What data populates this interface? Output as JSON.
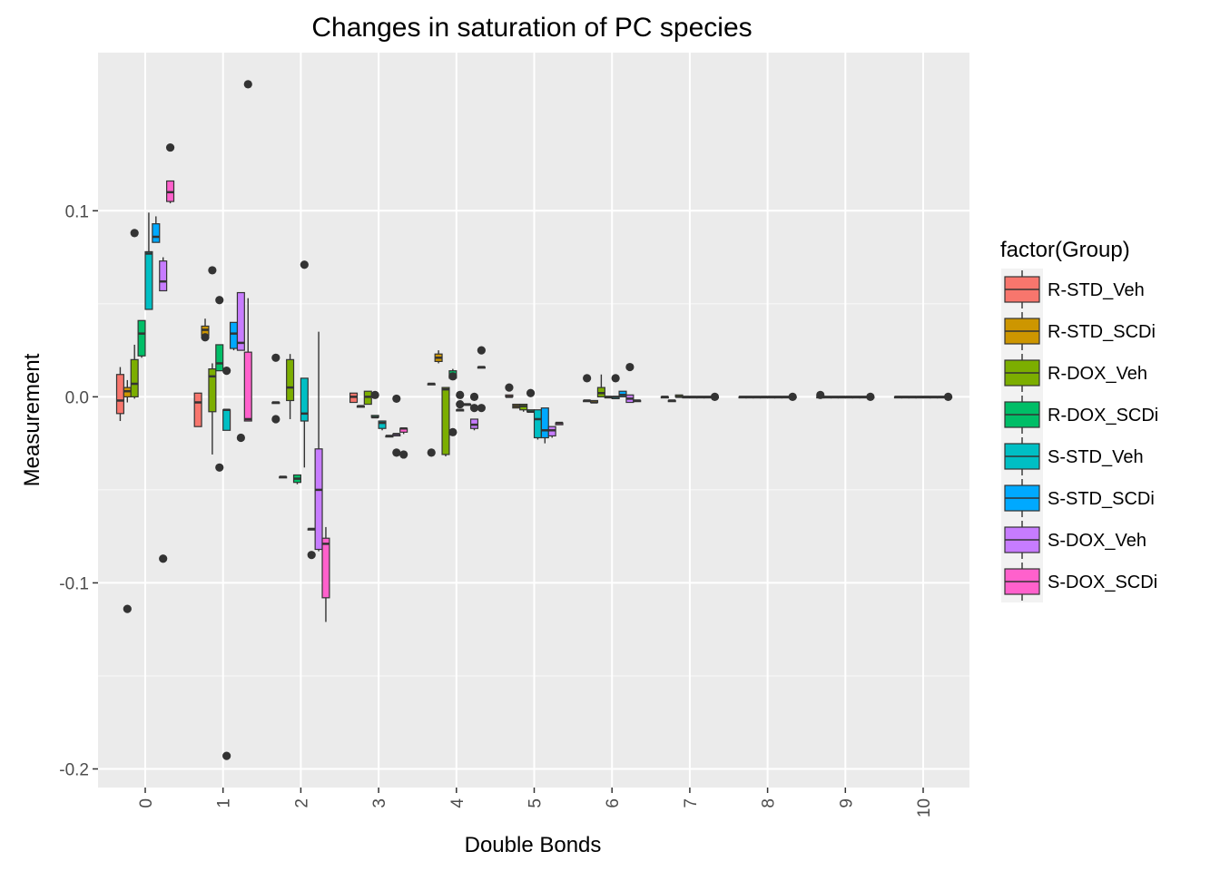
{
  "chart_data": {
    "type": "boxplot",
    "title": "Changes in saturation of PC species",
    "xlabel": "Double Bonds",
    "ylabel": "Measurement",
    "categories": [
      "0",
      "1",
      "2",
      "3",
      "4",
      "5",
      "6",
      "7",
      "8",
      "9",
      "10"
    ],
    "ylim": [
      -0.21,
      0.185
    ],
    "yticks": [
      -0.2,
      -0.1,
      0.0,
      0.1
    ],
    "ytick_labels": [
      "-0.2",
      "-0.1",
      "0.0",
      "0.1"
    ],
    "grid": true,
    "background": "#ebebeb",
    "gridline_color": "#ffffff",
    "legend": {
      "title": "factor(Group)",
      "position": "right"
    },
    "series": [
      {
        "name": "R-STD_Veh",
        "color": "#F8766D",
        "boxes": [
          [
            -0.013,
            -0.009,
            -0.002,
            0.012,
            0.016
          ],
          [
            -0.016,
            -0.016,
            -0.003,
            0.002,
            0.002
          ],
          [
            -0.003,
            -0.003,
            -0.003,
            -0.003,
            -0.003
          ],
          [
            -0.003,
            -0.003,
            0.0,
            0.002,
            0.002
          ],
          [
            0.007,
            0.007,
            0.007,
            0.007,
            0.007
          ],
          [
            0.0,
            0.0,
            0.0,
            0.001,
            0.001
          ],
          [
            -0.002,
            -0.002,
            -0.002,
            -0.002,
            -0.002
          ],
          [
            0.0,
            0.0,
            0.0,
            0.0,
            0.0
          ],
          [
            0.0,
            0.0,
            0.0,
            0.0,
            0.0
          ],
          [
            0.0,
            0.0,
            0.0,
            0.0,
            0.0
          ],
          [
            0.0,
            0.0,
            0.0,
            0.0,
            0.0
          ]
        ],
        "outliers": [
          [],
          [],
          [
            -0.012,
            0.021
          ],
          [],
          [
            -0.03
          ],
          [
            0.005
          ],
          [
            0.01
          ],
          [],
          [],
          [
            0.001
          ],
          []
        ]
      },
      {
        "name": "R-STD_SCDi",
        "color": "#CD9600",
        "boxes": [
          [
            -0.003,
            0.0,
            0.003,
            0.005,
            0.009
          ],
          [
            0.032,
            0.033,
            0.036,
            0.038,
            0.042
          ],
          [
            -0.043,
            -0.043,
            -0.043,
            -0.043,
            -0.043
          ],
          [
            -0.005,
            -0.005,
            -0.005,
            -0.005,
            -0.005
          ],
          [
            0.018,
            0.019,
            0.021,
            0.023,
            0.025
          ],
          [
            -0.006,
            -0.006,
            -0.005,
            -0.004,
            -0.004
          ],
          [
            -0.003,
            -0.003,
            -0.003,
            -0.002,
            -0.002
          ],
          [
            -0.002,
            -0.002,
            -0.002,
            -0.002,
            -0.002
          ],
          [
            0.0,
            0.0,
            0.0,
            0.0,
            0.0
          ],
          [
            0.0,
            0.0,
            0.0,
            0.0,
            0.0
          ],
          [
            0.0,
            0.0,
            0.0,
            0.0,
            0.0
          ]
        ],
        "outliers": [
          [
            -0.114
          ],
          [
            0.032
          ],
          [],
          [],
          [],
          [],
          [],
          [],
          [],
          [],
          []
        ]
      },
      {
        "name": "R-DOX_Veh",
        "color": "#7CAE00",
        "boxes": [
          [
            -0.001,
            0.0,
            0.007,
            0.02,
            0.028
          ],
          [
            -0.031,
            -0.008,
            0.011,
            0.015,
            0.018
          ],
          [
            -0.012,
            -0.002,
            0.005,
            0.02,
            0.023
          ],
          [
            -0.004,
            -0.004,
            0.0,
            0.003,
            0.003
          ],
          [
            -0.032,
            -0.031,
            0.004,
            0.005,
            0.005
          ],
          [
            -0.008,
            -0.007,
            -0.005,
            -0.004,
            -0.004
          ],
          [
            0.0,
            0.0,
            0.002,
            0.005,
            0.012
          ],
          [
            0.0,
            0.0,
            0.0,
            0.001,
            0.001
          ],
          [
            0.0,
            0.0,
            0.0,
            0.0,
            0.0
          ],
          [
            0.0,
            0.0,
            0.0,
            0.0,
            0.0
          ],
          [
            0.0,
            0.0,
            0.0,
            0.0,
            0.0
          ]
        ],
        "outliers": [
          [
            0.088
          ],
          [
            0.068
          ],
          [],
          [],
          [],
          [],
          [],
          [],
          [],
          [],
          []
        ]
      },
      {
        "name": "R-DOX_SCDi",
        "color": "#00BE67",
        "boxes": [
          [
            0.021,
            0.022,
            0.034,
            0.041,
            0.041
          ],
          [
            0.014,
            0.014,
            0.018,
            0.028,
            0.028
          ],
          [
            -0.047,
            -0.046,
            -0.044,
            -0.042,
            -0.042
          ],
          [
            -0.011,
            -0.011,
            -0.011,
            -0.01,
            -0.01
          ],
          [
            0.01,
            0.01,
            0.012,
            0.014,
            0.015
          ],
          [
            -0.008,
            -0.008,
            -0.008,
            -0.007,
            -0.007
          ],
          [
            0.0,
            0.0,
            0.0,
            0.0,
            0.0
          ],
          [
            0.0,
            0.0,
            0.0,
            0.0,
            0.0
          ],
          [
            0.0,
            0.0,
            0.0,
            0.0,
            0.0
          ],
          [
            0.0,
            0.0,
            0.0,
            0.0,
            0.0
          ],
          [
            0.0,
            0.0,
            0.0,
            0.0,
            0.0
          ]
        ],
        "outliers": [
          [],
          [
            -0.038,
            0.052
          ],
          [],
          [
            0.001
          ],
          [
            -0.019,
            0.011
          ],
          [
            0.002
          ],
          [],
          [],
          [],
          [],
          []
        ]
      },
      {
        "name": "S-STD_Veh",
        "color": "#00BFC4",
        "boxes": [
          [
            0.047,
            0.047,
            0.077,
            0.078,
            0.099
          ],
          [
            -0.018,
            -0.018,
            -0.007,
            -0.007,
            -0.007
          ],
          [
            -0.038,
            -0.013,
            -0.009,
            0.01,
            0.01
          ],
          [
            -0.018,
            -0.017,
            -0.014,
            -0.013,
            -0.013
          ],
          [
            -0.007,
            -0.007,
            -0.007,
            -0.007,
            -0.007
          ],
          [
            -0.023,
            -0.022,
            -0.012,
            -0.007,
            -0.007
          ],
          [
            -0.001,
            -0.001,
            0.0,
            0.0,
            0.0
          ],
          [
            0.0,
            0.0,
            0.0,
            0.0,
            0.0
          ],
          [
            0.0,
            0.0,
            0.0,
            0.0,
            0.0
          ],
          [
            0.0,
            0.0,
            0.0,
            0.0,
            0.0
          ],
          [
            0.0,
            0.0,
            0.0,
            0.0,
            0.0
          ]
        ],
        "outliers": [
          [],
          [
            -0.193,
            0.014
          ],
          [
            0.071
          ],
          [],
          [
            -0.004,
            0.001
          ],
          [],
          [
            0.01
          ],
          [],
          [],
          [],
          []
        ]
      },
      {
        "name": "S-STD_SCDi",
        "color": "#00A9FF",
        "boxes": [
          [
            0.083,
            0.083,
            0.086,
            0.093,
            0.097
          ],
          [
            0.025,
            0.026,
            0.034,
            0.04,
            0.04
          ],
          [
            -0.071,
            -0.071,
            -0.071,
            -0.071,
            -0.071
          ],
          [
            -0.021,
            -0.021,
            -0.021,
            -0.021,
            -0.021
          ],
          [
            -0.004,
            -0.004,
            -0.004,
            -0.004,
            -0.004
          ],
          [
            -0.025,
            -0.022,
            -0.018,
            -0.006,
            -0.006
          ],
          [
            0.0,
            0.0,
            0.001,
            0.003,
            0.003
          ],
          [
            0.0,
            0.0,
            0.0,
            0.0,
            0.0
          ],
          [
            0.0,
            0.0,
            0.0,
            0.0,
            0.0
          ],
          [
            0.0,
            0.0,
            0.0,
            0.0,
            0.0
          ],
          [
            0.0,
            0.0,
            0.0,
            0.0,
            0.0
          ]
        ],
        "outliers": [
          [],
          [],
          [
            -0.085
          ],
          [],
          [],
          [],
          [],
          [],
          [],
          [],
          []
        ]
      },
      {
        "name": "S-DOX_Veh",
        "color": "#C77CFF",
        "boxes": [
          [
            0.057,
            0.057,
            0.062,
            0.073,
            0.075
          ],
          [
            0.025,
            0.025,
            0.029,
            0.056,
            0.056
          ],
          [
            -0.083,
            -0.082,
            -0.05,
            -0.028,
            0.035
          ],
          [
            -0.021,
            -0.021,
            -0.02,
            -0.02,
            -0.02
          ],
          [
            -0.018,
            -0.017,
            -0.015,
            -0.012,
            -0.012
          ],
          [
            -0.022,
            -0.021,
            -0.018,
            -0.016,
            -0.016
          ],
          [
            -0.003,
            -0.003,
            -0.001,
            0.001,
            0.001
          ],
          [
            0.0,
            0.0,
            0.0,
            0.0,
            0.0
          ],
          [
            0.0,
            0.0,
            0.0,
            0.0,
            0.0
          ],
          [
            0.0,
            0.0,
            0.0,
            0.0,
            0.0
          ],
          [
            0.0,
            0.0,
            0.0,
            0.0,
            0.0
          ]
        ],
        "outliers": [
          [
            -0.087
          ],
          [
            -0.022
          ],
          [],
          [
            -0.001,
            -0.03
          ],
          [
            0.0,
            -0.006
          ],
          [],
          [
            0.016
          ],
          [],
          [],
          [],
          []
        ]
      },
      {
        "name": "S-DOX_SCDi",
        "color": "#FF61CC",
        "boxes": [
          [
            0.104,
            0.105,
            0.11,
            0.116,
            0.116
          ],
          [
            -0.013,
            -0.013,
            -0.012,
            0.024,
            0.053
          ],
          [
            -0.121,
            -0.108,
            -0.079,
            -0.076,
            -0.07
          ],
          [
            -0.02,
            -0.019,
            -0.017,
            -0.017,
            -0.017
          ],
          [
            0.016,
            0.016,
            0.016,
            0.016,
            0.016
          ],
          [
            -0.015,
            -0.015,
            -0.014,
            -0.014,
            -0.014
          ],
          [
            -0.002,
            -0.002,
            -0.002,
            -0.002,
            -0.002
          ],
          [
            0.0,
            0.0,
            0.0,
            0.0,
            0.0
          ],
          [
            0.0,
            0.0,
            0.0,
            0.0,
            0.0
          ],
          [
            0.0,
            0.0,
            0.0,
            0.0,
            0.0
          ],
          [
            0.0,
            0.0,
            0.0,
            0.0,
            0.0
          ]
        ],
        "outliers": [
          [
            0.134
          ],
          [
            0.168
          ],
          [],
          [
            -0.031
          ],
          [
            0.025,
            -0.006
          ],
          [],
          [],
          [
            0.0
          ],
          [
            0.0
          ],
          [
            0.0
          ],
          [
            0.0
          ]
        ]
      }
    ]
  }
}
